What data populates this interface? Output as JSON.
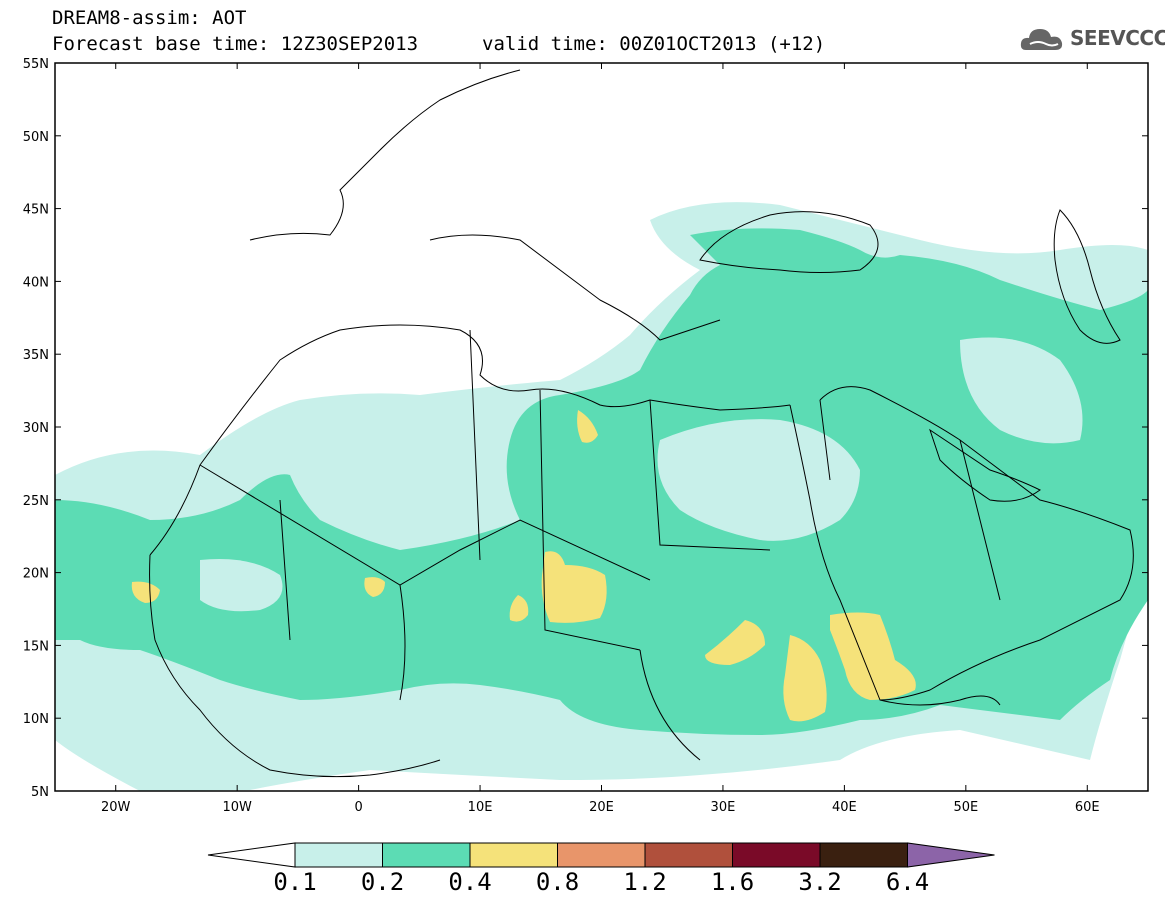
{
  "header": {
    "title_line1": "DREAM8-assim: AOT",
    "title_line2": "Forecast base time: 12Z30SEP2013",
    "valid_time": "valid time: 00Z01OCT2013 (+12)"
  },
  "logo": {
    "text": "SEEVCCC",
    "icon": "cloud-icon"
  },
  "map": {
    "lat_labels": [
      "55N",
      "50N",
      "45N",
      "40N",
      "35N",
      "30N",
      "25N",
      "20N",
      "15N",
      "10N",
      "5N"
    ],
    "lon_labels": [
      "20W",
      "10W",
      "0",
      "10E",
      "20E",
      "30E",
      "40E",
      "50E",
      "60E"
    ],
    "lat_range": [
      5,
      55
    ],
    "lon_range": [
      -25,
      65
    ]
  },
  "legend": {
    "bounds": [
      "0.1",
      "0.2",
      "0.4",
      "0.8",
      "1.2",
      "1.6",
      "3.2",
      "6.4"
    ],
    "colors": [
      "#ffffff",
      "#c8f0ea",
      "#5cdcb4",
      "#f5e27a",
      "#e8956a",
      "#b0503c",
      "#7a0a28",
      "#3a2010",
      "#8c64a8"
    ]
  }
}
